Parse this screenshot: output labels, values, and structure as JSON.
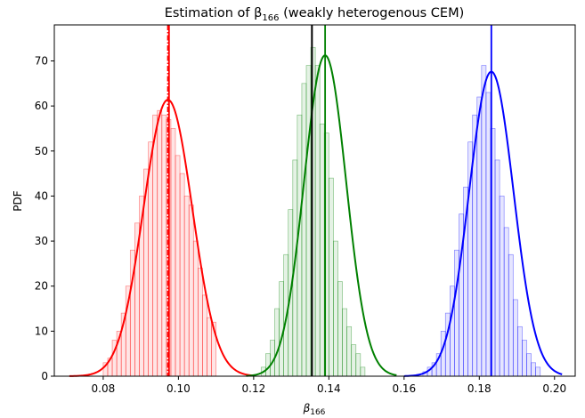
{
  "chart_data": {
    "type": "histogram",
    "title_prefix": "Estimation of β",
    "title_subscript": "166",
    "title_suffix": " (weakly heterogenous CEM)",
    "xlabel_main": "β",
    "xlabel_sub": "166",
    "ylabel": "PDF",
    "xlim": [
      0.067,
      0.2055
    ],
    "ylim": [
      0,
      78
    ],
    "xticks": [
      0.08,
      0.1,
      0.12,
      0.14,
      0.16,
      0.18,
      0.2
    ],
    "xtick_labels": [
      "0.08",
      "0.10",
      "0.12",
      "0.14",
      "0.16",
      "0.18",
      "0.20"
    ],
    "yticks": [
      0,
      10,
      20,
      30,
      40,
      50,
      60,
      70
    ],
    "ytick_labels": [
      "0",
      "10",
      "20",
      "30",
      "40",
      "50",
      "60",
      "70"
    ],
    "bin_width": 0.0012,
    "series": [
      {
        "color": "#ff0000",
        "curve_mean": 0.0972,
        "curve_sd": 0.0065,
        "curve_range": [
          0.071,
          0.12
        ],
        "vlines": [
          {
            "x": 0.0972,
            "style": "dashdot"
          },
          {
            "x": 0.0975,
            "style": "solid"
          }
        ],
        "bins_start": 0.08,
        "bars": [
          3,
          4,
          8,
          10,
          14,
          20,
          28,
          34,
          40,
          46,
          52,
          58,
          59,
          58,
          57,
          55,
          49,
          45,
          40,
          38,
          30,
          24,
          18,
          13,
          12
        ]
      },
      {
        "color": "#008000",
        "curve_mean": 0.139,
        "curve_sd": 0.0056,
        "curve_range": [
          0.118,
          0.158
        ],
        "vlines": [
          {
            "x": 0.139,
            "style": "solid"
          }
        ],
        "bins_start": 0.122,
        "bars": [
          2,
          5,
          8,
          15,
          21,
          27,
          37,
          48,
          58,
          65,
          69,
          73,
          69,
          56,
          54,
          44,
          30,
          21,
          15,
          11,
          7,
          5,
          2
        ]
      },
      {
        "color": "#0000ff",
        "curve_mean": 0.1832,
        "curve_sd": 0.0059,
        "curve_range": [
          0.16,
          0.202
        ],
        "vlines": [
          {
            "x": 0.1832,
            "style": "solid"
          }
        ],
        "bins_start": 0.165,
        "bars": [
          1,
          2,
          3,
          5,
          10,
          14,
          20,
          28,
          36,
          42,
          52,
          58,
          62,
          69,
          63,
          55,
          48,
          40,
          33,
          27,
          17,
          11,
          8,
          5,
          3,
          2
        ]
      }
    ],
    "reference_line": {
      "x": 0.1355,
      "color": "#000000"
    }
  }
}
